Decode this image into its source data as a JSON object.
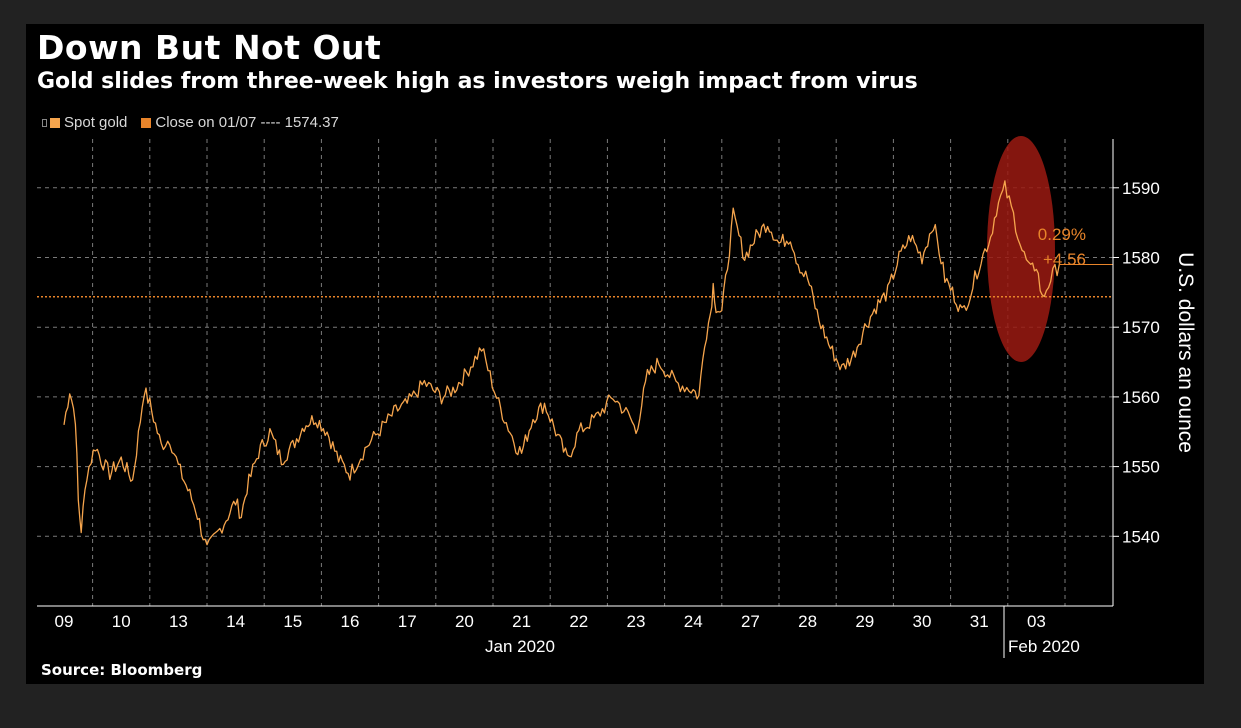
{
  "title": "Down But Not Out",
  "subtitle": "Gold slides from three-week high as investors weigh impact from virus",
  "source": "Source: Bloomberg",
  "legend": {
    "series_label": "Spot gold",
    "close_label": "Close on 01/07 ---- 1574.37"
  },
  "colors": {
    "series": "#f6a54d",
    "close_line": "#e8842a",
    "highlight": "#9b1a12",
    "grid": "#7a7a7a"
  },
  "annotation": {
    "pct": "0.29%",
    "change": "+4.56"
  },
  "chart_data": {
    "type": "line",
    "title": "Down But Not Out",
    "subtitle": "Gold slides from three-week high as investors weigh impact from virus",
    "ylabel": "U.S. dollars an ounce",
    "ylim": [
      1530,
      1597
    ],
    "y_ticks": [
      1540,
      1550,
      1560,
      1570,
      1580,
      1590
    ],
    "x_ticks": [
      "09",
      "10",
      "13",
      "14",
      "15",
      "16",
      "17",
      "20",
      "21",
      "22",
      "23",
      "24",
      "27",
      "28",
      "29",
      "30",
      "31",
      "03"
    ],
    "x_groups": [
      "Jan 2020",
      "Feb 2020"
    ],
    "reference_line": {
      "label": "Close on 01/07",
      "value": 1574.37
    },
    "last_value": 1579,
    "legend_position": "top-left",
    "grid": true,
    "series": [
      {
        "name": "Spot gold",
        "x": [
          0,
          0.1,
          0.2,
          0.25,
          0.3,
          0.4,
          0.55,
          0.65,
          0.8,
          1.0,
          1.2,
          1.4,
          1.5,
          1.7,
          1.85,
          2.0,
          2.1,
          2.3,
          2.5,
          2.8,
          3.0,
          3.1,
          3.2,
          3.4,
          3.6,
          3.8,
          4.0,
          4.2,
          4.4,
          4.6,
          4.8,
          5.0,
          5.3,
          5.6,
          5.8,
          6.0,
          6.3,
          6.6,
          6.8,
          7.0,
          7.3,
          7.6,
          7.8,
          7.9,
          8.0,
          8.2,
          8.4,
          8.6,
          8.8,
          9.0,
          9.3,
          9.6,
          9.9,
          10.0,
          10.2,
          10.4,
          10.7,
          11.0,
          11.1,
          11.2,
          11.3,
          11.35,
          11.4,
          11.5,
          11.7,
          11.9,
          12.1,
          12.3,
          12.5,
          12.7,
          12.8,
          12.9,
          13.0,
          13.2,
          13.4,
          13.6,
          13.8,
          14.0,
          14.2,
          14.4,
          14.6,
          14.8,
          15.0,
          15.2,
          15.4,
          15.6,
          15.7,
          15.85,
          16.0,
          16.2,
          16.3,
          16.45,
          16.6,
          16.75,
          16.9,
          17.0,
          17.1,
          17.25,
          17.4
        ],
        "y": [
          1556,
          1561,
          1557,
          1545,
          1541,
          1549,
          1553,
          1551,
          1549,
          1551,
          1548,
          1561,
          1559,
          1553,
          1554,
          1550,
          1548,
          1544,
          1538,
          1542,
          1545,
          1543,
          1547,
          1552,
          1555,
          1551,
          1553,
          1556,
          1557,
          1555,
          1551,
          1549,
          1553,
          1556,
          1558,
          1559,
          1562,
          1560,
          1561,
          1563,
          1567,
          1559,
          1555,
          1553,
          1552,
          1557,
          1559,
          1555,
          1551,
          1555,
          1557,
          1560,
          1557,
          1555,
          1563,
          1565,
          1562,
          1561,
          1560,
          1568,
          1572,
          1576,
          1573,
          1572,
          1586,
          1580,
          1583,
          1585,
          1582,
          1583,
          1580,
          1578,
          1577,
          1571,
          1567,
          1564,
          1566,
          1570,
          1573,
          1575,
          1580,
          1583,
          1580,
          1585,
          1577,
          1574,
          1572,
          1575,
          1579,
          1583,
          1587,
          1590,
          1586,
          1581,
          1578,
          1579,
          1574,
          1577,
          1579
        ]
      }
    ]
  }
}
